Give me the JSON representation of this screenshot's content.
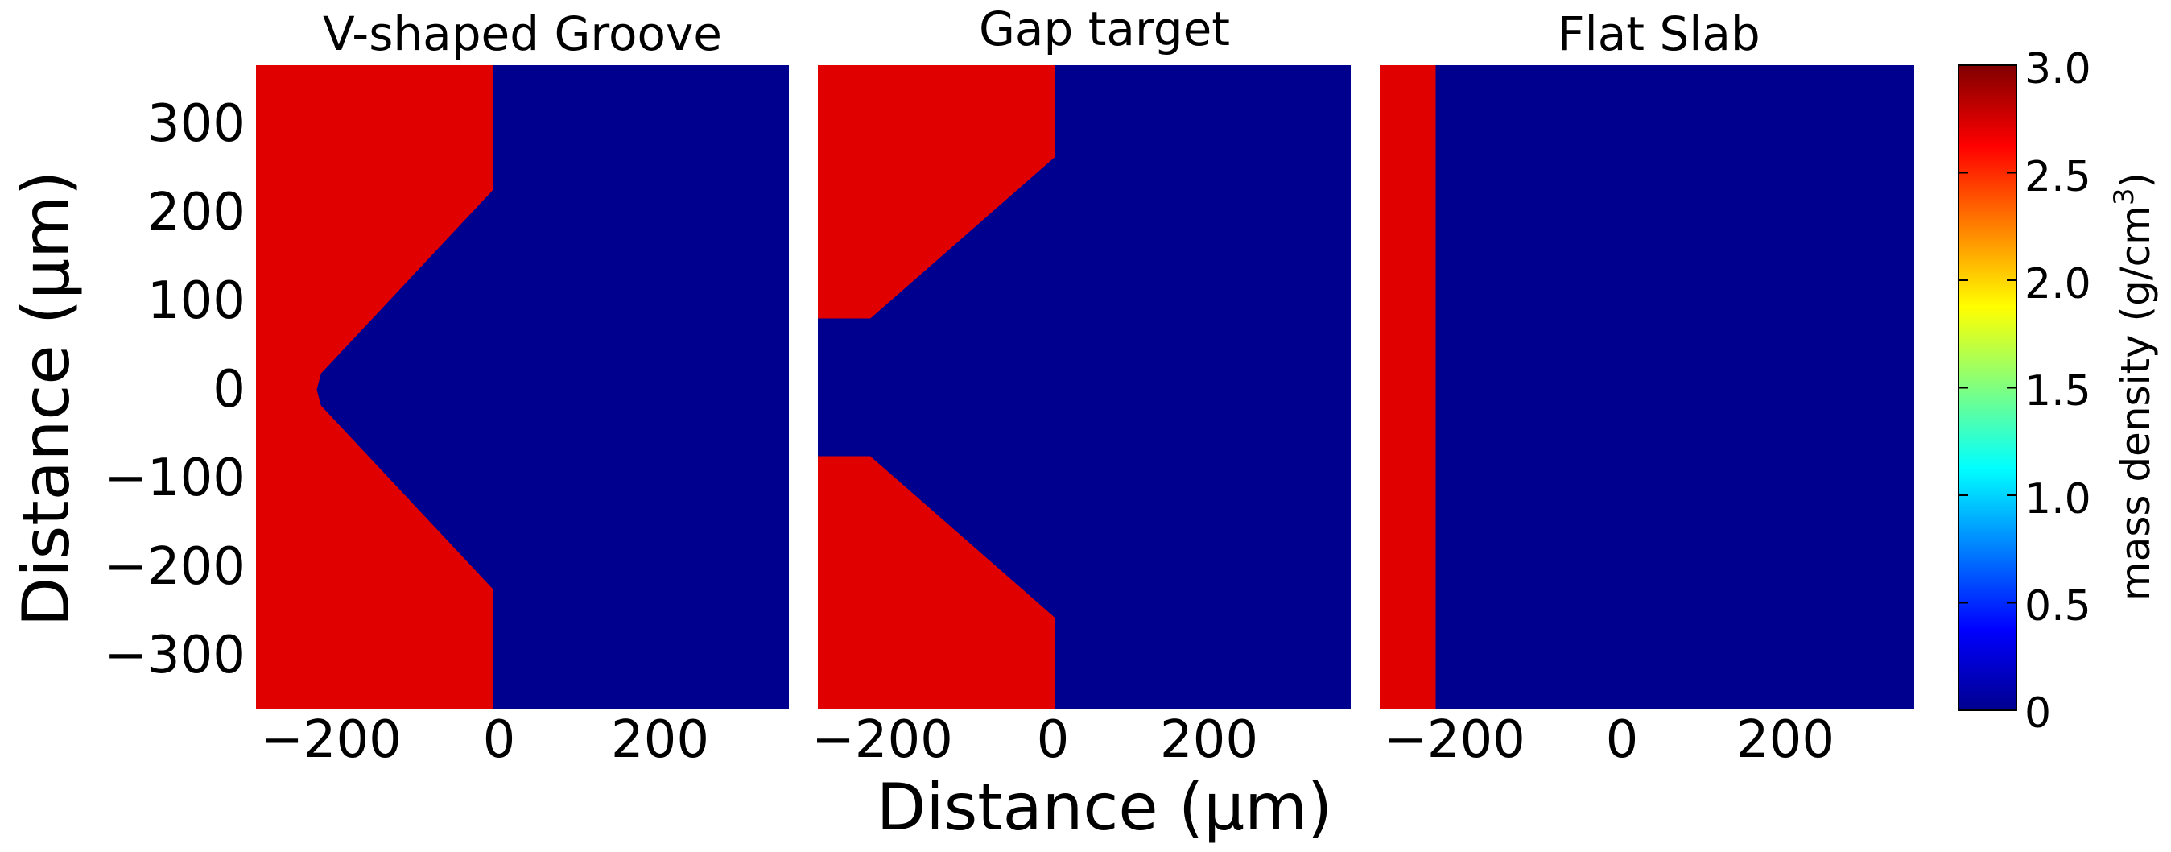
{
  "chart_data": [
    {
      "type": "heatmap",
      "title": "V-shaped Groove",
      "xlim": [
        -285,
        355
      ],
      "ylim": [
        -360,
        365
      ],
      "xticks": [
        {
          "value": -200,
          "label": "−200"
        },
        {
          "value": 0,
          "label": "0"
        },
        {
          "value": 200,
          "label": "200"
        }
      ],
      "yticks": [
        {
          "value": 300,
          "label": "300"
        },
        {
          "value": 200,
          "label": "200"
        },
        {
          "value": 100,
          "label": "100"
        },
        {
          "value": 0,
          "label": "0"
        },
        {
          "value": -100,
          "label": "−100"
        },
        {
          "value": -200,
          "label": "−200"
        },
        {
          "value": -300,
          "label": "−300"
        }
      ],
      "background_density": 0,
      "target_density": 2.7,
      "target_outline": [
        [
          -285,
          365
        ],
        [
          0,
          365
        ],
        [
          0,
          225
        ],
        [
          -207,
          18
        ],
        [
          -212,
          0
        ],
        [
          -207,
          -18
        ],
        [
          0,
          -225
        ],
        [
          0,
          -360
        ],
        [
          -285,
          -360
        ]
      ]
    },
    {
      "type": "heatmap",
      "title": "Gap target",
      "xlim": [
        -285,
        355
      ],
      "ylim": [
        -360,
        365
      ],
      "xticks": [
        {
          "value": -200,
          "label": "−200"
        },
        {
          "value": 0,
          "label": "0"
        },
        {
          "value": 200,
          "label": "200"
        }
      ],
      "background_density": 0,
      "target_density": 2.7,
      "target_outlines": [
        [
          [
            -285,
            365
          ],
          [
            0,
            365
          ],
          [
            0,
            262
          ],
          [
            -222,
            80
          ],
          [
            -285,
            80
          ]
        ],
        [
          [
            -285,
            -75
          ],
          [
            -222,
            -75
          ],
          [
            0,
            -257
          ],
          [
            0,
            -360
          ],
          [
            -285,
            -360
          ]
        ]
      ]
    },
    {
      "type": "heatmap",
      "title": "Flat Slab",
      "xlim": [
        -285,
        355
      ],
      "ylim": [
        -360,
        365
      ],
      "xticks": [
        {
          "value": -200,
          "label": "−200"
        },
        {
          "value": 0,
          "label": "0"
        },
        {
          "value": 200,
          "label": "200"
        }
      ],
      "background_density": 0,
      "target_density": 2.7,
      "target_outline": [
        [
          -285,
          365
        ],
        [
          -218,
          365
        ],
        [
          -218,
          -360
        ],
        [
          -285,
          -360
        ]
      ]
    }
  ],
  "xlabel": "Distance (μm)",
  "ylabel": "Distance (μm)",
  "colorbar": {
    "label_main": "mass density (g/cm",
    "label_sup": "3",
    "label_close": ")",
    "range": [
      0,
      3.0
    ],
    "ticks": [
      {
        "value": 3.0,
        "label": "3.0"
      },
      {
        "value": 2.5,
        "label": "2.5"
      },
      {
        "value": 2.0,
        "label": "2.0"
      },
      {
        "value": 1.5,
        "label": "1.5"
      },
      {
        "value": 1.0,
        "label": "1.0"
      },
      {
        "value": 0.5,
        "label": "0.5"
      },
      {
        "value": 0,
        "label": "0"
      }
    ],
    "colormap": "jet"
  },
  "colors": {
    "target": "#e00000",
    "background": "#00008f"
  }
}
